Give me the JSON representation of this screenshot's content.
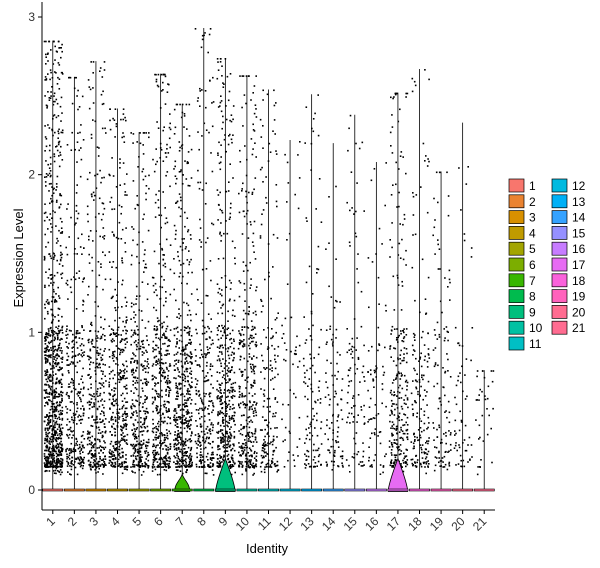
{
  "chart_data": {
    "type": "violin",
    "xlabel": "Identity",
    "ylabel": "Expression Level",
    "ylim": [
      -0.12,
      3.06
    ],
    "y_ticks": [
      "0",
      "1",
      "2",
      "3"
    ],
    "categories": [
      "1",
      "2",
      "3",
      "4",
      "5",
      "6",
      "7",
      "8",
      "9",
      "10",
      "11",
      "12",
      "13",
      "14",
      "15",
      "16",
      "17",
      "18",
      "19",
      "20",
      "21"
    ],
    "colors": [
      "#F8766D",
      "#EA8331",
      "#D89000",
      "#C09B00",
      "#A3A500",
      "#7CAE00",
      "#39B600",
      "#00BB4E",
      "#00BF7D",
      "#00C1A3",
      "#00BFC4",
      "#00BAE0",
      "#00B0F6",
      "#35A2FF",
      "#9590FF",
      "#C77CFF",
      "#E76BF3",
      "#FA62DB",
      "#FF62BC",
      "#FF6C91",
      "#FF6C91"
    ],
    "max_values": [
      2.85,
      2.62,
      2.72,
      2.42,
      2.27,
      2.64,
      2.45,
      2.93,
      2.74,
      2.63,
      2.54,
      2.22,
      2.51,
      2.2,
      2.38,
      2.08,
      2.52,
      2.67,
      2.02,
      2.33,
      0.76
    ],
    "dot_density": [
      1.0,
      0.35,
      0.4,
      0.45,
      0.4,
      0.5,
      0.55,
      0.3,
      0.5,
      0.4,
      0.2,
      0.05,
      0.12,
      0.1,
      0.1,
      0.08,
      0.3,
      0.18,
      0.12,
      0.06,
      0.03
    ],
    "violin_peak_width": [
      0,
      0,
      0,
      0,
      0,
      0,
      0.35,
      0,
      0.45,
      0,
      0,
      0,
      0,
      0,
      0,
      0,
      0.45,
      0,
      0,
      0,
      0
    ],
    "violin_peak_height": [
      0,
      0,
      0,
      0,
      0,
      0,
      0.1,
      0,
      0.2,
      0,
      0,
      0,
      0,
      0,
      0,
      0,
      0.2,
      0,
      0,
      0,
      0
    ],
    "legend": {
      "col1": [
        "1",
        "2",
        "3",
        "4",
        "5",
        "6",
        "7",
        "8",
        "9",
        "10",
        "11"
      ],
      "col2": [
        "12",
        "13",
        "14",
        "15",
        "16",
        "17",
        "18",
        "19",
        "20",
        "21"
      ]
    }
  }
}
